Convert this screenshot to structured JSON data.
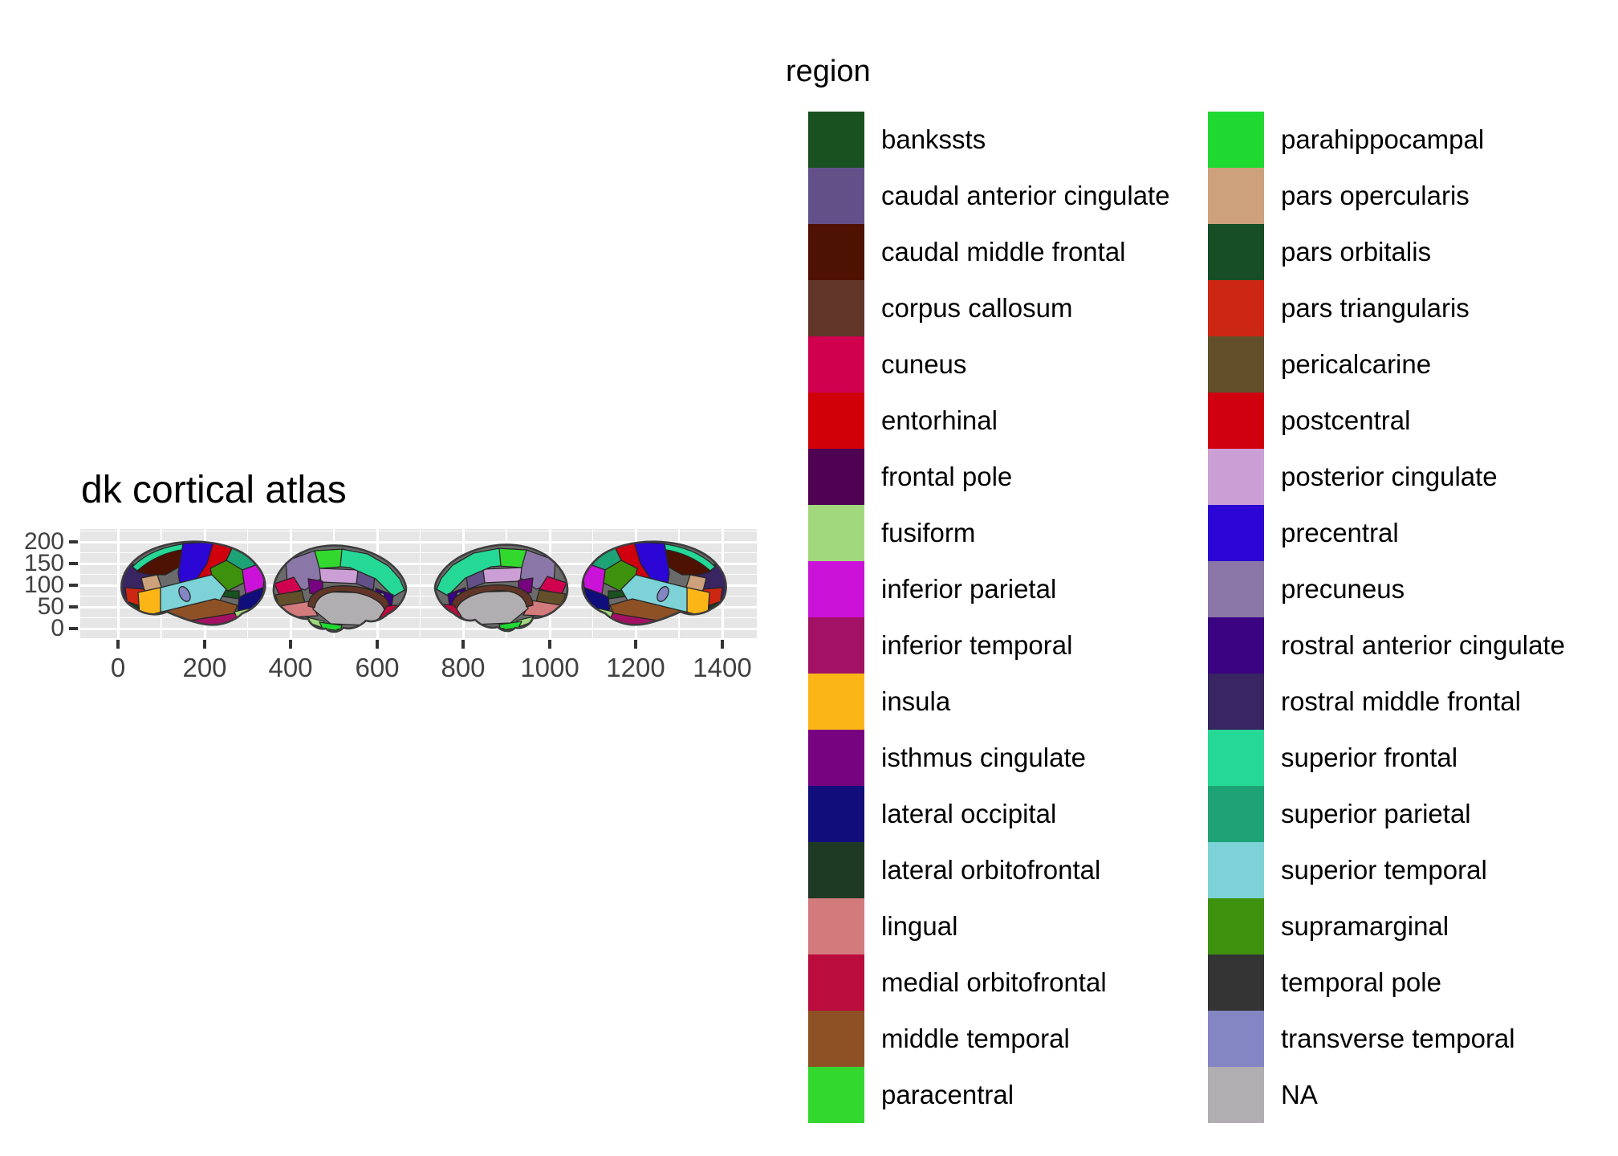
{
  "title": "dk cortical atlas",
  "legend": {
    "title": "region",
    "columns": [
      {
        "items": [
          {
            "label": "bankssts",
            "color": "#1a5120"
          },
          {
            "label": "caudal anterior cingulate",
            "color": "#645089"
          },
          {
            "label": "caudal middle frontal",
            "color": "#4d1202"
          },
          {
            "label": "corpus callosum",
            "color": "#613628"
          },
          {
            "label": "cuneus",
            "color": "#d0004f"
          },
          {
            "label": "entorhinal",
            "color": "#d10008"
          },
          {
            "label": "frontal pole",
            "color": "#4f0152"
          },
          {
            "label": "fusiform",
            "color": "#a2d87d"
          },
          {
            "label": "inferior parietal",
            "color": "#cb12d8"
          },
          {
            "label": "inferior temporal",
            "color": "#a31164"
          },
          {
            "label": "insula",
            "color": "#fcb517"
          },
          {
            "label": "isthmus cingulate",
            "color": "#770381"
          },
          {
            "label": "lateral occipital",
            "color": "#110e7c"
          },
          {
            "label": "lateral orbitofrontal",
            "color": "#1e3a24"
          },
          {
            "label": "lingual",
            "color": "#d37a7d"
          },
          {
            "label": "medial orbitofrontal",
            "color": "#ba0c3d"
          },
          {
            "label": "middle temporal",
            "color": "#8e5125"
          },
          {
            "label": "paracentral",
            "color": "#33d82f"
          }
        ]
      },
      {
        "items": [
          {
            "label": "parahippocampal",
            "color": "#1fd930"
          },
          {
            "label": "pars opercularis",
            "color": "#cda17b"
          },
          {
            "label": "pars orbitalis",
            "color": "#174e26"
          },
          {
            "label": "pars triangularis",
            "color": "#cd2713"
          },
          {
            "label": "pericalcarine",
            "color": "#63502a"
          },
          {
            "label": "postcentral",
            "color": "#d0000f"
          },
          {
            "label": "posterior cingulate",
            "color": "#cb9fd5"
          },
          {
            "label": "precentral",
            "color": "#2b06d4"
          },
          {
            "label": "precuneus",
            "color": "#8b77a7"
          },
          {
            "label": "rostral anterior cingulate",
            "color": "#3a0381"
          },
          {
            "label": "rostral middle frontal",
            "color": "#392562"
          },
          {
            "label": "superior frontal",
            "color": "#25d895"
          },
          {
            "label": "superior parietal",
            "color": "#1ea376"
          },
          {
            "label": "superior temporal",
            "color": "#7cd2d6"
          },
          {
            "label": "supramarginal",
            "color": "#3e910c"
          },
          {
            "label": "temporal pole",
            "color": "#343434"
          },
          {
            "label": "transverse temporal",
            "color": "#8486c3"
          },
          {
            "label": "NA",
            "color": "#b1aeb1"
          }
        ]
      }
    ]
  },
  "axes": {
    "x": {
      "ticks": [
        "0",
        "200",
        "400",
        "600",
        "800",
        "1000",
        "1200",
        "1400"
      ]
    },
    "y": {
      "ticks": [
        "200",
        "150",
        "100",
        "50",
        "0"
      ]
    }
  },
  "panel": {
    "background": "#e6e6e6",
    "grid_color": "#ffffff"
  },
  "chart_data": {
    "type": "map",
    "title": "dk cortical atlas",
    "legend_title": "region",
    "description": "Desikan-Killiany cortical atlas plotted as four brain silhouettes (left lateral, left medial, right medial, right lateral) with polygons filled by cortical region.",
    "views": [
      "left lateral",
      "left medial",
      "right medial",
      "right lateral"
    ],
    "x_ticks": [
      0,
      200,
      400,
      600,
      800,
      1000,
      1200,
      1400
    ],
    "y_ticks": [
      0,
      50,
      100,
      150,
      200
    ],
    "grid": true,
    "legend_position": "right",
    "regions": [
      "bankssts",
      "caudal anterior cingulate",
      "caudal middle frontal",
      "corpus callosum",
      "cuneus",
      "entorhinal",
      "frontal pole",
      "fusiform",
      "inferior parietal",
      "inferior temporal",
      "insula",
      "isthmus cingulate",
      "lateral occipital",
      "lateral orbitofrontal",
      "lingual",
      "medial orbitofrontal",
      "middle temporal",
      "paracentral",
      "parahippocampal",
      "pars opercularis",
      "pars orbitalis",
      "pars triangularis",
      "pericalcarine",
      "postcentral",
      "posterior cingulate",
      "precentral",
      "precuneus",
      "rostral anterior cingulate",
      "rostral middle frontal",
      "superior frontal",
      "superior parietal",
      "superior temporal",
      "supramarginal",
      "temporal pole",
      "transverse temporal",
      "NA"
    ]
  }
}
